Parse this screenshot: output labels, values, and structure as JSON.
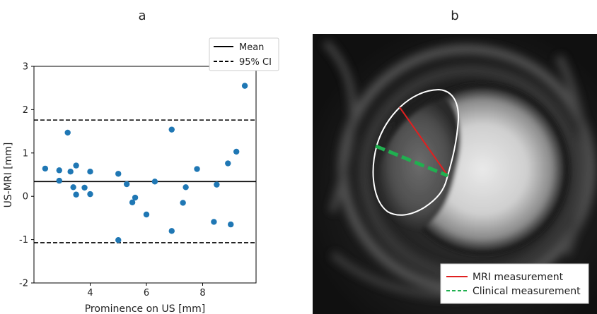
{
  "panel_a_label": "a",
  "panel_b_label": "b",
  "chart_data": {
    "type": "scatter",
    "xlabel": "Prominence on US [mm]",
    "ylabel": "US-MRI [mm]",
    "xlim": [
      2.0,
      9.9
    ],
    "ylim": [
      -2,
      3
    ],
    "x_ticks": [
      4,
      6,
      8
    ],
    "y_ticks": [
      -2,
      -1,
      0,
      1,
      2,
      3
    ],
    "x_tick_labels": [
      "4",
      "6",
      "8"
    ],
    "y_tick_labels": [
      "-2",
      "-1",
      "0",
      "1",
      "2",
      "3"
    ],
    "grid": false,
    "legend": {
      "placement": "top-right",
      "entries": [
        "Mean",
        "95% CI"
      ]
    },
    "point_color": "#1f77b4",
    "series": [
      {
        "x": [
          2.4,
          2.9,
          2.9,
          3.2,
          3.3,
          3.4,
          3.5,
          3.5,
          3.8,
          4.0,
          4.0,
          5.0,
          5.0,
          5.3,
          5.5,
          5.6,
          6.0,
          6.3,
          6.9,
          6.9,
          7.3,
          7.4,
          7.8,
          8.4,
          8.5,
          8.9,
          9.0,
          9.2,
          9.5
        ],
        "y": [
          0.64,
          0.6,
          0.36,
          1.47,
          0.57,
          0.21,
          0.71,
          0.04,
          0.2,
          0.57,
          0.05,
          0.52,
          -1.01,
          0.28,
          -0.14,
          -0.03,
          -0.42,
          0.34,
          1.54,
          -0.8,
          -0.15,
          0.21,
          0.63,
          -0.59,
          0.27,
          0.76,
          -0.65,
          1.03,
          2.55
        ]
      }
    ],
    "lines": [
      {
        "name": "Mean",
        "y": 0.34,
        "style": "solid"
      },
      {
        "name": "95% CI",
        "y": 1.76,
        "style": "dashed"
      },
      {
        "name": "95% CI",
        "y": -1.07,
        "style": "dashed"
      }
    ]
  },
  "image_legend": {
    "entries": [
      {
        "label": "MRI measurement",
        "color": "#e02020",
        "style": "solid"
      },
      {
        "label": "Clinical measurement",
        "color": "#20b050",
        "style": "dashed"
      }
    ]
  }
}
